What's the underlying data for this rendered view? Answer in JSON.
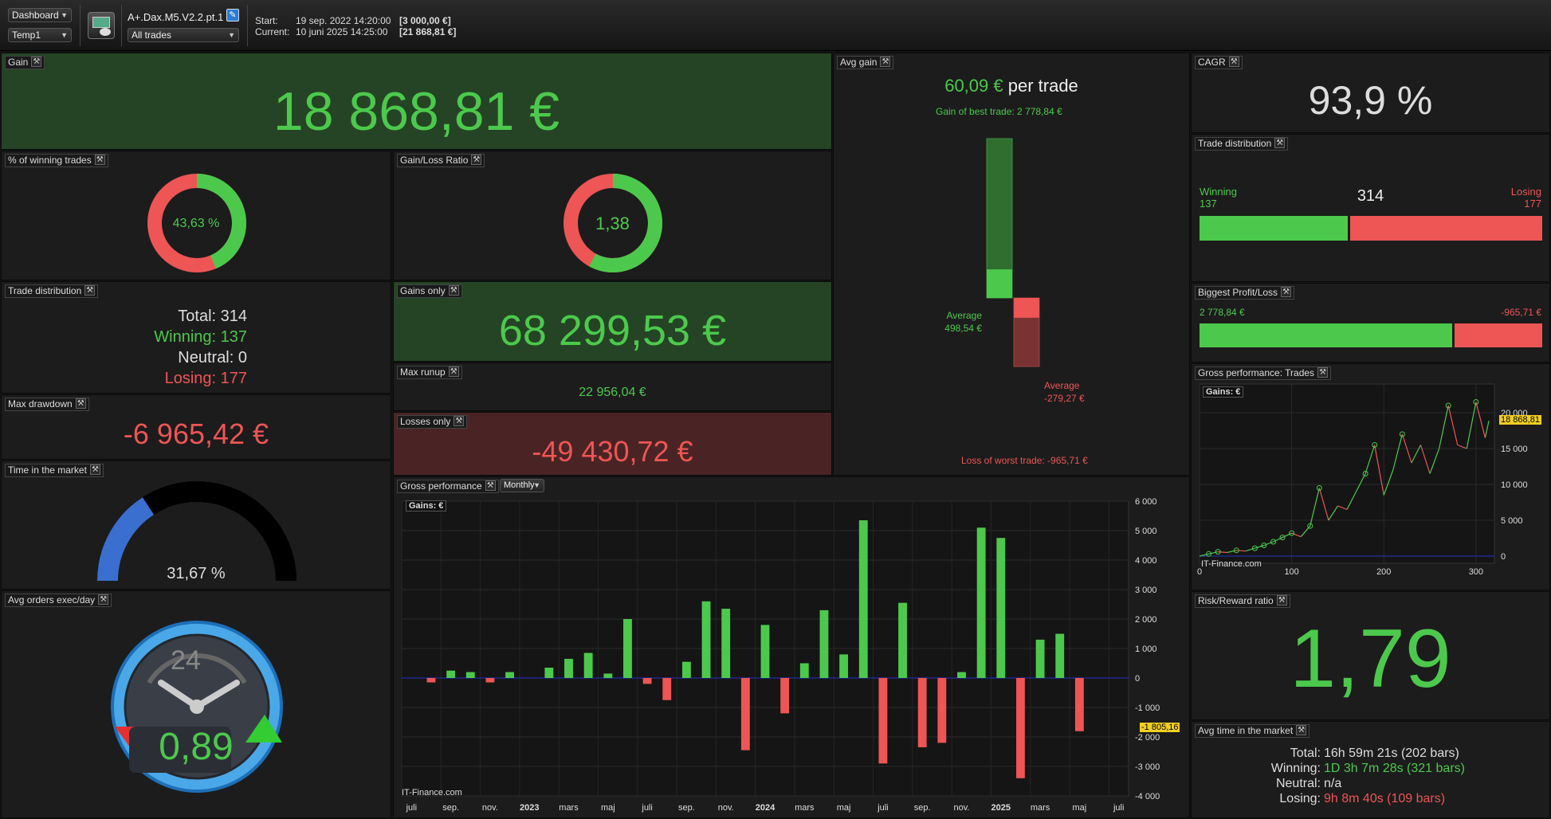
{
  "toolbar": {
    "view_select": "Dashboard",
    "template_select": "Temp1",
    "strategy_name": "A+.Dax.M5.V2.2.pt.1",
    "filter_select": "All trades",
    "start_label": "Start:",
    "start_date": "19 sep. 2022 14:20:00",
    "start_value": "[3 000,00 €]",
    "current_label": "Current:",
    "current_date": "10 juni 2025 14:25:00",
    "current_value": "[21 868,81 €]"
  },
  "gain": {
    "title": "Gain",
    "value": "18 868,81 €"
  },
  "winning_pct": {
    "title": "% of winning trades",
    "value": "43,63 %",
    "fraction": 0.4363
  },
  "gain_loss_ratio": {
    "title": "Gain/Loss Ratio",
    "value": "1,38",
    "fraction": 0.58
  },
  "trade_dist_text": {
    "title": "Trade distribution",
    "total": "Total: 314",
    "winning": "Winning: 137",
    "neutral": "Neutral: 0",
    "losing": "Losing: 177"
  },
  "gains_only": {
    "title": "Gains only",
    "value": "68 299,53 €"
  },
  "max_runup": {
    "title": "Max runup",
    "value": "22 956,04 €"
  },
  "losses_only": {
    "title": "Losses only",
    "value": "-49 430,72 €"
  },
  "max_drawdown": {
    "title": "Max drawdown",
    "value": "-6 965,42 €"
  },
  "time_in_market": {
    "title": "Time in the market",
    "value": "31,67 %",
    "fraction": 0.3167
  },
  "avg_orders": {
    "title": "Avg orders exec/day",
    "value": "0,89",
    "clock_label": "24"
  },
  "avg_gain": {
    "title": "Avg gain",
    "value": "60,09 €",
    "suffix": "per trade",
    "best_label": "Gain of best trade: 2 778,84 €",
    "worst_label": "Loss of worst trade: -965,71 €",
    "avg_win_label": "Average",
    "avg_win_value": "498,54 €",
    "avg_loss_label": "Average",
    "avg_loss_value": "-279,27 €",
    "best": 2778.84,
    "avg_win": 498.54,
    "worst": -965.71,
    "avg_loss": -279.27
  },
  "cagr": {
    "title": "CAGR",
    "value": "93,9 %"
  },
  "trade_dist_bar": {
    "title": "Trade distribution",
    "winning_label": "Winning",
    "winning_count": "137",
    "total": "314",
    "losing_label": "Losing",
    "losing_count": "177",
    "winning": 137,
    "losing": 177
  },
  "biggest": {
    "title": "Biggest Profit/Loss",
    "profit": "2 778,84 €",
    "loss": "-965,71 €",
    "profit_value": 2778.84,
    "loss_value": 965.71
  },
  "gross_trades": {
    "title": "Gross performance: Trades",
    "badge": "Gains: €",
    "watermark": "IT-Finance.com",
    "current_tag": "18 868,81",
    "y_ticks": [
      "20 000",
      "15 000",
      "10 000",
      "5 000",
      "0"
    ],
    "x_ticks": [
      "0",
      "100",
      "200",
      "300"
    ]
  },
  "risk_reward": {
    "title": "Risk/Reward ratio",
    "value": "1,79"
  },
  "avg_time": {
    "title": "Avg time in the market",
    "total_label": "Total:",
    "total": "16h 59m 21s (202 bars)",
    "winning_label": "Winning:",
    "winning": "1D 3h 7m 28s (321 bars)",
    "neutral_label": "Neutral:",
    "neutral": "n/a",
    "losing_label": "Losing:",
    "losing": "9h 8m 40s (109 bars)"
  },
  "gross_monthly": {
    "title": "Gross performance",
    "period_select": "Monthly",
    "badge": "Gains: €",
    "watermark": "IT-Finance.com",
    "current_tag": "-1 805,16"
  },
  "colors": {
    "green": "#4cc94c",
    "red": "#ee5555",
    "blue": "#3a6fd0",
    "yellow": "#f0d020"
  },
  "chart_data": [
    {
      "type": "bar",
      "title": "Gross performance",
      "categories": [
        "2022-07",
        "2022-08",
        "2022-09",
        "2022-10",
        "2022-11",
        "2022-12",
        "2023-01",
        "2023-02",
        "2023-03",
        "2023-04",
        "2023-05",
        "2023-06",
        "2023-07",
        "2023-08",
        "2023-09",
        "2023-10",
        "2023-11",
        "2023-12",
        "2024-01",
        "2024-02",
        "2024-03",
        "2024-04",
        "2024-05",
        "2024-06",
        "2024-07",
        "2024-08",
        "2024-09",
        "2024-10",
        "2024-11",
        "2024-12",
        "2025-01",
        "2025-02",
        "2025-03",
        "2025-04",
        "2025-05",
        "2025-06",
        "2025-07"
      ],
      "values": [
        0,
        -150,
        250,
        200,
        -150,
        200,
        0,
        350,
        650,
        850,
        150,
        2000,
        -200,
        -750,
        550,
        2600,
        2350,
        -2450,
        1800,
        -1200,
        500,
        2300,
        800,
        5350,
        -2900,
        2550,
        -2350,
        -2200,
        200,
        5100,
        4750,
        -3400,
        1300,
        1500,
        -1805.16,
        0,
        0
      ],
      "x_tick_labels": [
        "juli",
        "sep.",
        "nov.",
        "2023",
        "mars",
        "maj",
        "juli",
        "sep.",
        "nov.",
        "2024",
        "mars",
        "maj",
        "juli",
        "sep.",
        "nov.",
        "2025",
        "mars",
        "maj",
        "juli"
      ],
      "y_tick_labels": [
        "6 000",
        "5 000",
        "4 000",
        "3 000",
        "2 000",
        "1 000",
        "0",
        "-1 000",
        "-2 000",
        "-3 000",
        "-4 000"
      ],
      "ylim": [
        -4000,
        6000
      ],
      "grid": true
    },
    {
      "type": "line",
      "title": "Gross performance: Trades",
      "x": [
        0,
        10,
        20,
        30,
        40,
        50,
        60,
        70,
        80,
        90,
        100,
        110,
        120,
        130,
        140,
        150,
        160,
        170,
        180,
        190,
        200,
        210,
        220,
        230,
        240,
        250,
        260,
        270,
        280,
        290,
        300,
        310,
        314
      ],
      "y": [
        0,
        300,
        600,
        500,
        800,
        700,
        1100,
        1500,
        2000,
        2600,
        3200,
        2700,
        4200,
        9500,
        5000,
        7000,
        6500,
        9000,
        11500,
        15500,
        8500,
        12000,
        17000,
        13000,
        15500,
        11500,
        15000,
        21000,
        15500,
        15000,
        21500,
        16500,
        18868.81
      ],
      "xlim": [
        0,
        320
      ],
      "ylim": [
        -1000,
        24000
      ],
      "grid": true
    }
  ]
}
